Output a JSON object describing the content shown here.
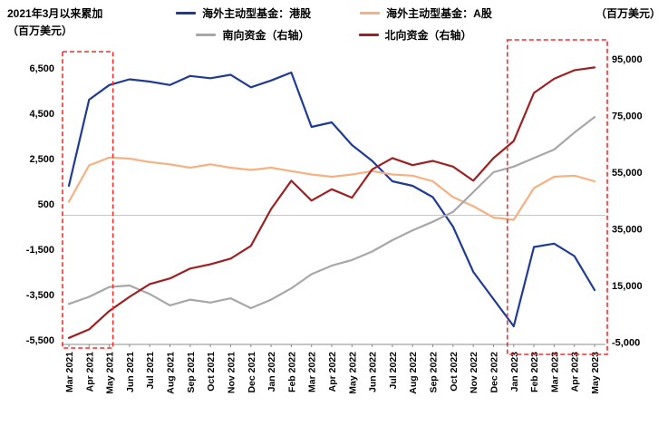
{
  "chart_data": {
    "type": "line",
    "title_left": "2021年3月以来累加",
    "unit_left": "（百万美元）",
    "unit_right": "（百万美元）",
    "x": [
      "Mar 2021",
      "Apr 2021",
      "May 2021",
      "Jun 2021",
      "Jul 2021",
      "Aug 2021",
      "Sep 2021",
      "Oct 2021",
      "Nov 2021",
      "Dec 2021",
      "Jan 2022",
      "Feb 2022",
      "Mar 2022",
      "Apr 2022",
      "May 2022",
      "Jun 2022",
      "Jul 2022",
      "Aug 2022",
      "Sep 2022",
      "Oct 2022",
      "Nov 2022",
      "Dec 2022",
      "Jan 2023",
      "Feb 2023",
      "Mar 2023",
      "Apr 2023",
      "May 2023"
    ],
    "left_axis": {
      "min": -5500,
      "max": 6500,
      "ticks": [
        6500,
        4500,
        2500,
        500,
        -1500,
        -3500,
        -5500
      ]
    },
    "right_axis": {
      "min": -5000,
      "max": 95000,
      "ticks": [
        95000,
        75000,
        55000,
        35000,
        15000,
        -5000
      ]
    },
    "grid": "zero-line-only",
    "legend_position": "top",
    "series": [
      {
        "name": "海外主动型基金：港股",
        "axis": "left",
        "color": "#1f3b94",
        "values": [
          1300,
          5100,
          5750,
          6000,
          5900,
          5750,
          6150,
          6050,
          6200,
          5650,
          5950,
          6300,
          3900,
          4100,
          3100,
          2400,
          1500,
          1300,
          800,
          -500,
          -2500,
          -3700,
          -4900,
          -1400,
          -1250,
          -1800,
          -3300
        ]
      },
      {
        "name": "海外主动型基金：A股",
        "axis": "left",
        "color": "#f6b183",
        "values": [
          600,
          2200,
          2550,
          2500,
          2350,
          2250,
          2100,
          2250,
          2100,
          2000,
          2100,
          1950,
          1800,
          1700,
          1800,
          1950,
          1800,
          1750,
          1500,
          800,
          400,
          -100,
          -200,
          1200,
          1700,
          1750,
          1500
        ]
      },
      {
        "name": "南向资金（右轴）",
        "axis": "right",
        "color": "#a7a7a7",
        "values": [
          8500,
          11000,
          14500,
          15000,
          12000,
          8000,
          10000,
          9000,
          10500,
          7000,
          10000,
          14000,
          19000,
          22000,
          24000,
          27000,
          31000,
          34500,
          37500,
          41000,
          48000,
          55000,
          57000,
          60000,
          63000,
          69000,
          74500
        ]
      },
      {
        "name": "北向资金（右轴）",
        "axis": "right",
        "color": "#9d2022",
        "values": [
          -3500,
          -500,
          6000,
          11000,
          15500,
          17500,
          21000,
          22500,
          24500,
          29000,
          42000,
          52000,
          45000,
          49000,
          46000,
          56000,
          60000,
          57500,
          59000,
          57000,
          52000,
          60000,
          66000,
          83000,
          88000,
          91000,
          92000
        ]
      }
    ],
    "highlights": [
      {
        "from": "Mar 2021",
        "to": "May 2021",
        "color": "#f62d2d",
        "style": "dashed-rect"
      },
      {
        "from": "Jan 2023",
        "to": "May 2023",
        "color": "#f62d2d",
        "style": "dashed-rect"
      }
    ]
  }
}
